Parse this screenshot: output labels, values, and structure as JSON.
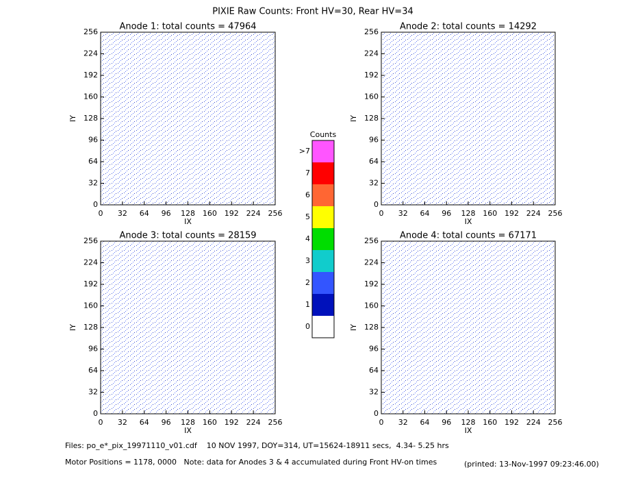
{
  "title": "PIXIE Raw Counts:  Front HV=30, Rear HV=34",
  "chart_data": [
    {
      "type": "heatmap",
      "title": "Anode 1: total counts = 47964",
      "xlabel": "IX",
      "ylabel": "IY",
      "xlim": [
        0,
        256
      ],
      "ylim": [
        0,
        256
      ],
      "xticks": [
        0,
        32,
        64,
        96,
        128,
        160,
        192,
        224,
        256
      ],
      "yticks": [
        0,
        32,
        64,
        96,
        128,
        160,
        192,
        224,
        256
      ]
    },
    {
      "type": "heatmap",
      "title": "Anode 2: total counts = 14292",
      "xlabel": "IX",
      "ylabel": "IY",
      "xlim": [
        0,
        256
      ],
      "ylim": [
        0,
        256
      ],
      "xticks": [
        0,
        32,
        64,
        96,
        128,
        160,
        192,
        224,
        256
      ],
      "yticks": [
        0,
        32,
        64,
        96,
        128,
        160,
        192,
        224,
        256
      ]
    },
    {
      "type": "heatmap",
      "title": "Anode 3: total counts = 28159",
      "xlabel": "IX",
      "ylabel": "IY",
      "xlim": [
        0,
        256
      ],
      "ylim": [
        0,
        256
      ],
      "xticks": [
        0,
        32,
        64,
        96,
        128,
        160,
        192,
        224,
        256
      ],
      "yticks": [
        0,
        32,
        64,
        96,
        128,
        160,
        192,
        224,
        256
      ]
    },
    {
      "type": "heatmap",
      "title": "Anode 4: total counts = 67171",
      "xlabel": "IX",
      "ylabel": "IY",
      "xlim": [
        0,
        256
      ],
      "ylim": [
        0,
        256
      ],
      "xticks": [
        0,
        32,
        64,
        96,
        128,
        160,
        192,
        224,
        256
      ],
      "yticks": [
        0,
        32,
        64,
        96,
        128,
        160,
        192,
        224,
        256
      ]
    }
  ],
  "colorbar": {
    "title": "Counts",
    "levels": [
      "0",
      "1",
      "2",
      "3",
      "4",
      "5",
      "6",
      "7",
      ">7"
    ],
    "colors": [
      "#ffffff",
      "#0011bb",
      "#3355ff",
      "#11cccc",
      "#00dd00",
      "#ffff00",
      "#ff6633",
      "#ff0000",
      "#ff55ff"
    ]
  },
  "footer": {
    "files": "Files: po_e*_pix_19971110_v01.cdf    10 NOV 1997, DOY=314, UT=15624-18911 secs,  4.34- 5.25 hrs",
    "motor": "Motor Positions = 1178, 0000   Note: data for Anodes 3 & 4 accumulated during Front HV-on times",
    "printed": "(printed: 13-Nov-1997 09:23:46.00)"
  }
}
